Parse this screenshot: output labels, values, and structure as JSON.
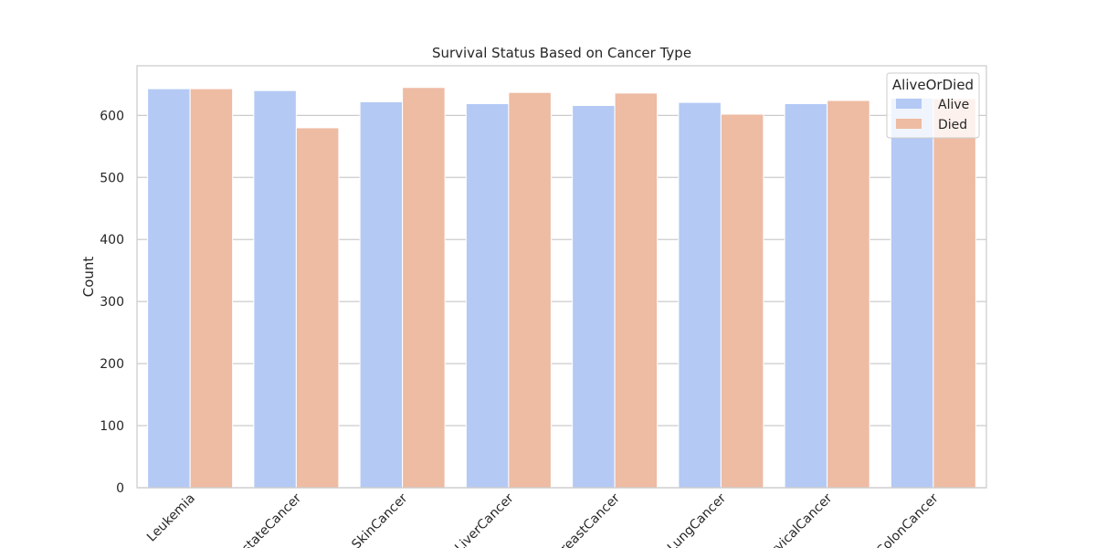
{
  "chart_data": {
    "type": "bar",
    "title": "Survival Status Based on Cancer Type",
    "xlabel": "",
    "ylabel": "Count",
    "ylim": [
      0,
      680
    ],
    "yticks": [
      0,
      100,
      200,
      300,
      400,
      500,
      600
    ],
    "grid": "horizontal",
    "categories": [
      "Leukemia",
      "ProstateCancer",
      "SkinCancer",
      "LiverCancer",
      "BreastCancer",
      "LungCancer",
      "CervicalCancer",
      "ColonCancer"
    ],
    "series": [
      {
        "name": "Alive",
        "color": "#b4c9f4",
        "values": [
          643,
          640,
          622,
          619,
          616,
          621,
          619,
          628
        ]
      },
      {
        "name": "Died",
        "color": "#eebba3",
        "values": [
          643,
          580,
          645,
          637,
          636,
          602,
          624,
          627
        ]
      }
    ],
    "legend": {
      "title": "AliveOrDied",
      "placement": "top-right"
    }
  }
}
